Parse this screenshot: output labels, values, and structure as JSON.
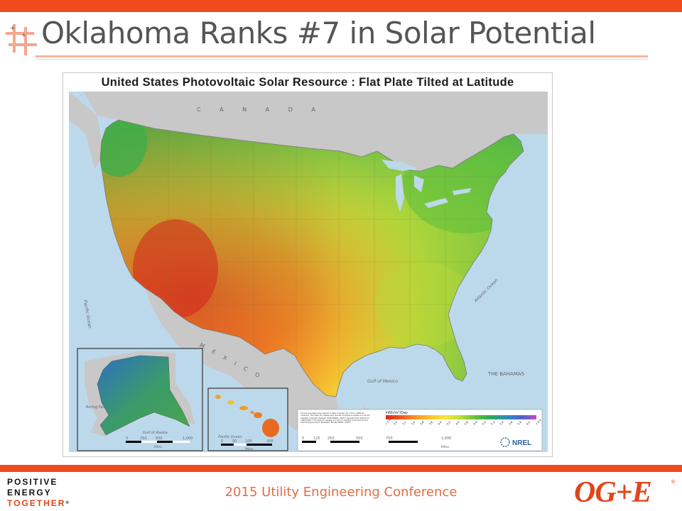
{
  "slide": {
    "title": "Oklahoma Ranks #7 in Solar Potential",
    "conference": "2015 Utility Engineering Conference",
    "slogan": [
      "POSITIVE",
      "ENERGY",
      "TOGETHER"
    ],
    "logo": "OG+E",
    "icon": "cross-grid-icon",
    "colors": {
      "accent": "#f04a1f",
      "title_text": "#555555",
      "conference_text": "#e36c45"
    }
  },
  "map": {
    "title": "United States Photovoltaic Solar Resource : Flat Plate Tilted at Latitude",
    "country_labels": {
      "canada": "C A N A D A",
      "mexico": "M E X I C O",
      "bahamas": "THE BAHAMAS"
    },
    "water_labels": {
      "pacific": "Pacific Ocean",
      "atlantic": "Atlantic Ocean",
      "gulf_mexico": "Gulf of Mexico",
      "gulf_alaska": "Gulf of Alaska",
      "bering": "Bering Sea",
      "pacific_hawaii": "Pacific Ocean"
    },
    "legend": {
      "unit": "kWh/m²/Day",
      "note": "Annual average solar resource data is shown for a tilt = latitude collector. The data for Hawaii and the 48 contiguous states is a 10 km satellite modeled dataset (SUNY/NREL, 2007) representing data from 1998-2005. The data for Alaska is a 40 km dataset produced by the Climatological Solar Radiation Model (NREL, 2003).",
      "gradient": [
        "#d42b1e",
        "#ef5a1c",
        "#f7962a",
        "#fbc531",
        "#f5e83a",
        "#b8dc3a",
        "#5dbf3c",
        "#2fa85c",
        "#2c8fbf",
        "#4c62c8",
        "#8b4fc4",
        "#c14cc8"
      ],
      "ticks": [
        "< 3.0",
        "3.0",
        "3.2",
        "3.4",
        "3.6",
        "3.8",
        "4.0",
        "4.2",
        "4.4",
        "4.6",
        "4.8",
        "5.0",
        "5.2",
        "5.4",
        "5.6",
        "5.8",
        "6.0",
        "> 6.0"
      ]
    },
    "scale_main": {
      "ticks": [
        "0",
        "125",
        "250",
        "500",
        "750",
        "1,000"
      ],
      "unit": "Miles"
    },
    "scale_alaska": {
      "ticks": [
        "0",
        "250",
        "500",
        "1,000"
      ],
      "unit": "Miles"
    },
    "scale_hawaii": {
      "ticks": [
        "0",
        "50",
        "100",
        "200"
      ],
      "unit": "Miles"
    },
    "credit": "NREL"
  }
}
